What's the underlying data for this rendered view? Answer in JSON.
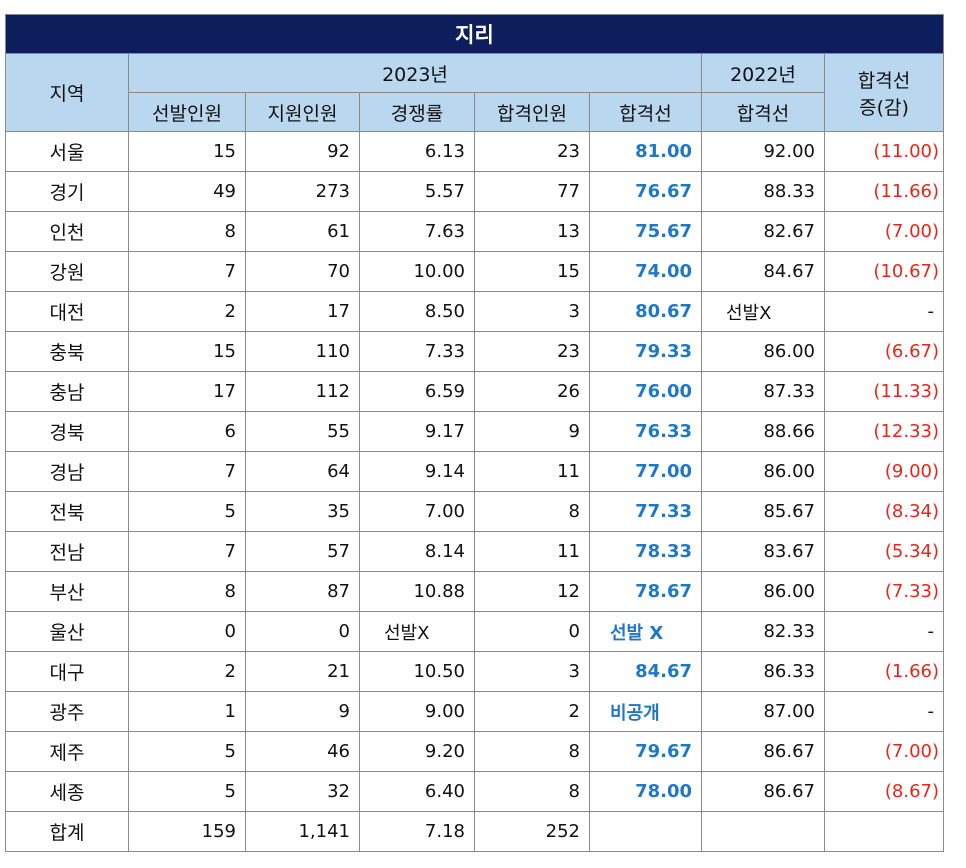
{
  "title": "지리",
  "headers": {
    "region": "지역",
    "year_2023": "2023년",
    "year_2022": "2022년",
    "change": "합격선 증(감)",
    "change_line1": "합격선",
    "change_line2": "증(감)",
    "selected": "선발인원",
    "applicants": "지원인원",
    "competition": "경쟁률",
    "passed": "합격인원",
    "cutoff_2023": "합격선",
    "cutoff_2022": "합격선"
  },
  "rows": [
    {
      "region": "서울",
      "selected": "15",
      "applicants": "92",
      "competition": "6.13",
      "passed": "23",
      "cutoff_2023": "81.00",
      "cutoff_2022": "92.00",
      "change": "(11.00)"
    },
    {
      "region": "경기",
      "selected": "49",
      "applicants": "273",
      "competition": "5.57",
      "passed": "77",
      "cutoff_2023": "76.67",
      "cutoff_2022": "88.33",
      "change": "(11.66)"
    },
    {
      "region": "인천",
      "selected": "8",
      "applicants": "61",
      "competition": "7.63",
      "passed": "13",
      "cutoff_2023": "75.67",
      "cutoff_2022": "82.67",
      "change": "(7.00)"
    },
    {
      "region": "강원",
      "selected": "7",
      "applicants": "70",
      "competition": "10.00",
      "passed": "15",
      "cutoff_2023": "74.00",
      "cutoff_2022": "84.67",
      "change": "(10.67)"
    },
    {
      "region": "대전",
      "selected": "2",
      "applicants": "17",
      "competition": "8.50",
      "passed": "3",
      "cutoff_2023": "80.67",
      "cutoff_2022": "선발X",
      "change": "-"
    },
    {
      "region": "충북",
      "selected": "15",
      "applicants": "110",
      "competition": "7.33",
      "passed": "23",
      "cutoff_2023": "79.33",
      "cutoff_2022": "86.00",
      "change": "(6.67)"
    },
    {
      "region": "충남",
      "selected": "17",
      "applicants": "112",
      "competition": "6.59",
      "passed": "26",
      "cutoff_2023": "76.00",
      "cutoff_2022": "87.33",
      "change": "(11.33)"
    },
    {
      "region": "경북",
      "selected": "6",
      "applicants": "55",
      "competition": "9.17",
      "passed": "9",
      "cutoff_2023": "76.33",
      "cutoff_2022": "88.66",
      "change": "(12.33)"
    },
    {
      "region": "경남",
      "selected": "7",
      "applicants": "64",
      "competition": "9.14",
      "passed": "11",
      "cutoff_2023": "77.00",
      "cutoff_2022": "86.00",
      "change": "(9.00)"
    },
    {
      "region": "전북",
      "selected": "5",
      "applicants": "35",
      "competition": "7.00",
      "passed": "8",
      "cutoff_2023": "77.33",
      "cutoff_2022": "85.67",
      "change": "(8.34)"
    },
    {
      "region": "전남",
      "selected": "7",
      "applicants": "57",
      "competition": "8.14",
      "passed": "11",
      "cutoff_2023": "78.33",
      "cutoff_2022": "83.67",
      "change": "(5.34)"
    },
    {
      "region": "부산",
      "selected": "8",
      "applicants": "87",
      "competition": "10.88",
      "passed": "12",
      "cutoff_2023": "78.67",
      "cutoff_2022": "86.00",
      "change": "(7.33)"
    },
    {
      "region": "울산",
      "selected": "0",
      "applicants": "0",
      "competition": "선발X",
      "passed": "0",
      "cutoff_2023": "선발 X",
      "cutoff_2022": "82.33",
      "change": "-"
    },
    {
      "region": "대구",
      "selected": "2",
      "applicants": "21",
      "competition": "10.50",
      "passed": "3",
      "cutoff_2023": "84.67",
      "cutoff_2022": "86.33",
      "change": "(1.66)"
    },
    {
      "region": "광주",
      "selected": "1",
      "applicants": "9",
      "competition": "9.00",
      "passed": "2",
      "cutoff_2023": "비공개",
      "cutoff_2022": "87.00",
      "change": "-"
    },
    {
      "region": "제주",
      "selected": "5",
      "applicants": "46",
      "competition": "9.20",
      "passed": "8",
      "cutoff_2023": "79.67",
      "cutoff_2022": "86.67",
      "change": "(7.00)"
    },
    {
      "region": "세종",
      "selected": "5",
      "applicants": "32",
      "competition": "6.40",
      "passed": "8",
      "cutoff_2023": "78.00",
      "cutoff_2022": "86.67",
      "change": "(8.67)"
    }
  ],
  "total": {
    "region": "합계",
    "selected": "159",
    "applicants": "1,141",
    "competition": "7.18",
    "passed": "252",
    "cutoff_2023": "",
    "cutoff_2022": "",
    "change": ""
  },
  "colors": {
    "title_bg": "#0c1f5c",
    "header_bg": "#b9d7ef",
    "cutoff_blue": "#1f78c6",
    "decrease_red": "#e8241c"
  }
}
